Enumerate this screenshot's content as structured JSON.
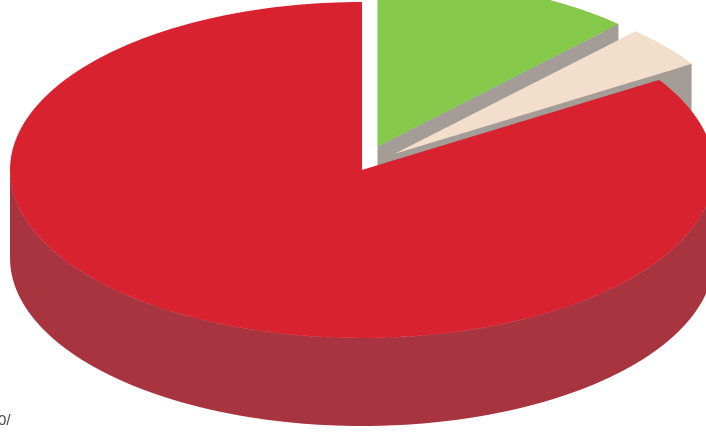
{
  "chart_data": {
    "type": "pie",
    "values": [
      12,
      4,
      84
    ],
    "colors": [
      "#86c94a",
      "#f3ddcb",
      "#d9222f"
    ],
    "side_colors": [
      "#a39c97",
      "#a39c97",
      "#a8343f"
    ],
    "exploded": [
      true,
      true,
      false
    ],
    "annotation": "0/"
  }
}
